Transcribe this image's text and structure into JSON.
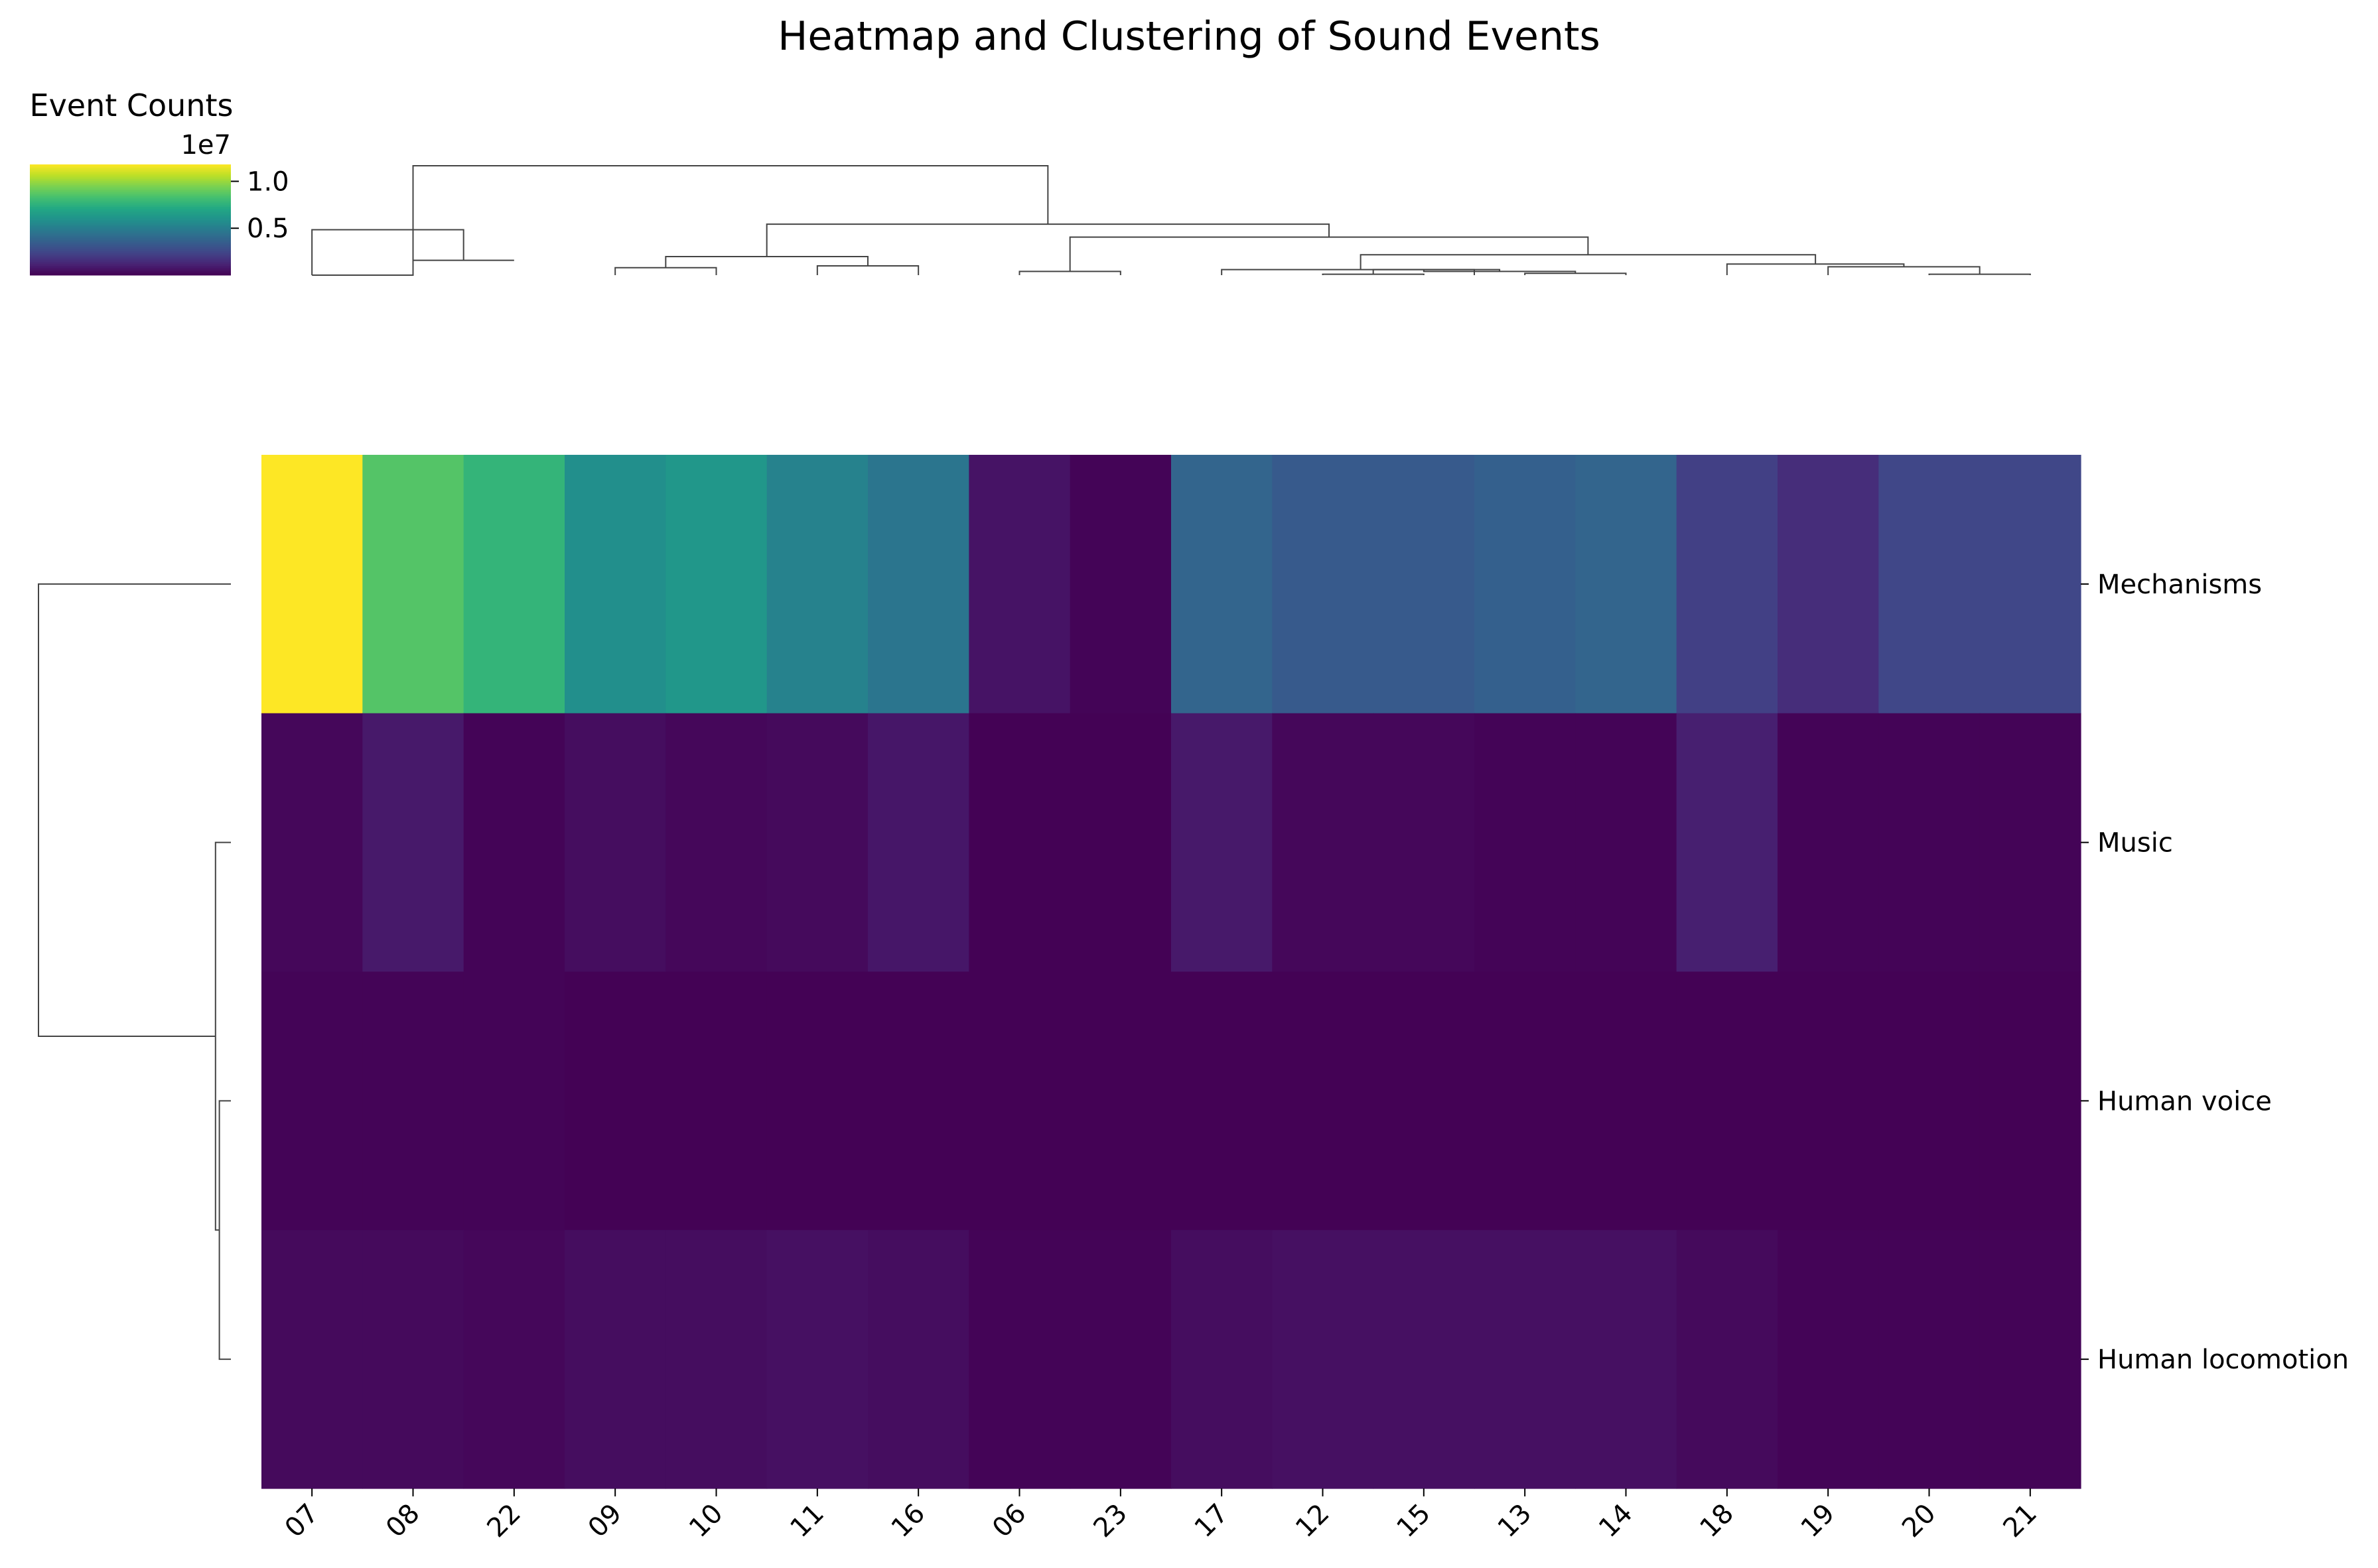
{
  "chart_data": {
    "type": "heatmap",
    "title": "Heatmap and Clustering of Sound Events",
    "colorbar": {
      "label": "Event Counts",
      "exponent_label": "1e7",
      "ticks": [
        0.5,
        1.0
      ],
      "tick_labels": [
        "0.5",
        "1.0"
      ],
      "range": [
        0.0,
        1.18
      ],
      "colormap": "viridis"
    },
    "columns": [
      "07",
      "08",
      "22",
      "09",
      "10",
      "11",
      "16",
      "06",
      "23",
      "17",
      "12",
      "15",
      "13",
      "14",
      "18",
      "19",
      "20",
      "21"
    ],
    "rows": [
      "Mechanisms",
      "Music",
      "Human voice",
      "Human locomotion"
    ],
    "values": [
      [
        1.18,
        0.86,
        0.77,
        0.58,
        0.62,
        0.52,
        0.46,
        0.06,
        0.01,
        0.38,
        0.33,
        0.33,
        0.36,
        0.38,
        0.22,
        0.15,
        0.25,
        0.25
      ],
      [
        0.02,
        0.08,
        0.01,
        0.04,
        0.02,
        0.03,
        0.07,
        0.005,
        0.005,
        0.08,
        0.02,
        0.02,
        0.01,
        0.01,
        0.1,
        0.01,
        0.01,
        0.01
      ],
      [
        0.01,
        0.01,
        0.01,
        0.005,
        0.005,
        0.005,
        0.005,
        0.005,
        0.005,
        0.005,
        0.005,
        0.005,
        0.005,
        0.005,
        0.005,
        0.005,
        0.005,
        0.005
      ],
      [
        0.03,
        0.03,
        0.02,
        0.04,
        0.04,
        0.05,
        0.04,
        0.01,
        0.01,
        0.04,
        0.05,
        0.05,
        0.05,
        0.05,
        0.03,
        0.01,
        0.01,
        0.01
      ]
    ],
    "col_dendrogram": [
      [
        0.5,
        0.0,
        1.5,
        0.0,
        1.5,
        0.16,
        2.5,
        0.16
      ],
      [
        3.5,
        0.0,
        3.5,
        0.08,
        4.5,
        0.08,
        4.5,
        0.0
      ],
      [
        5.5,
        0.0,
        5.5,
        0.1,
        6.5,
        0.1,
        6.5,
        0.0
      ],
      [
        4.0,
        0.08,
        4.0,
        0.2,
        6.0,
        0.2,
        6.0,
        0.1
      ],
      [
        7.5,
        0.0,
        7.5,
        0.04,
        8.5,
        0.04,
        8.5,
        0.0
      ],
      [
        10.5,
        0.0,
        10.5,
        0.01,
        11.5,
        0.01,
        11.5,
        0.0
      ],
      [
        11.0,
        0.01,
        11.0,
        0.06,
        12.0,
        0.06,
        12.0,
        0.0
      ],
      [
        12.5,
        0.0,
        12.5,
        0.02,
        13.5,
        0.02,
        13.5,
        0.0
      ],
      [
        11.5,
        0.06,
        11.5,
        0.04,
        13.0,
        0.04,
        13.0,
        0.02
      ],
      [
        9.5,
        0.0,
        9.5,
        0.06,
        12.25,
        0.06,
        12.25,
        0.04
      ],
      [
        16.5,
        0.0,
        16.5,
        0.01,
        17.5,
        0.01,
        17.5,
        0.0
      ],
      [
        15.5,
        0.0,
        15.5,
        0.09,
        17.0,
        0.09,
        17.0,
        0.01
      ],
      [
        14.5,
        0.0,
        14.5,
        0.12,
        16.25,
        0.12,
        16.25,
        0.09
      ],
      [
        10.875,
        0.06,
        10.875,
        0.22,
        15.375,
        0.22,
        15.375,
        0.12
      ],
      [
        8.0,
        0.04,
        8.0,
        0.41,
        13.125,
        0.41,
        13.125,
        0.22
      ],
      [
        5.0,
        0.2,
        5.0,
        0.55,
        10.5625,
        0.55,
        10.5625,
        0.41
      ],
      [
        1.5,
        0.16,
        1.5,
        1.18,
        7.78125,
        1.18,
        7.78125,
        0.55
      ],
      [
        0.5,
        0.0,
        0.5,
        0.49,
        2.0,
        0.49,
        2.0,
        0.16
      ]
    ],
    "row_dendrogram": [
      [
        2.5,
        0.0,
        2.5,
        0.06,
        3.5,
        0.06,
        3.5,
        0.0
      ],
      [
        1.5,
        0.0,
        1.5,
        0.08,
        3.0,
        0.08,
        3.0,
        0.06
      ],
      [
        0.5,
        0.0,
        0.5,
        1.0,
        2.25,
        1.0,
        2.25,
        0.08
      ]
    ]
  }
}
